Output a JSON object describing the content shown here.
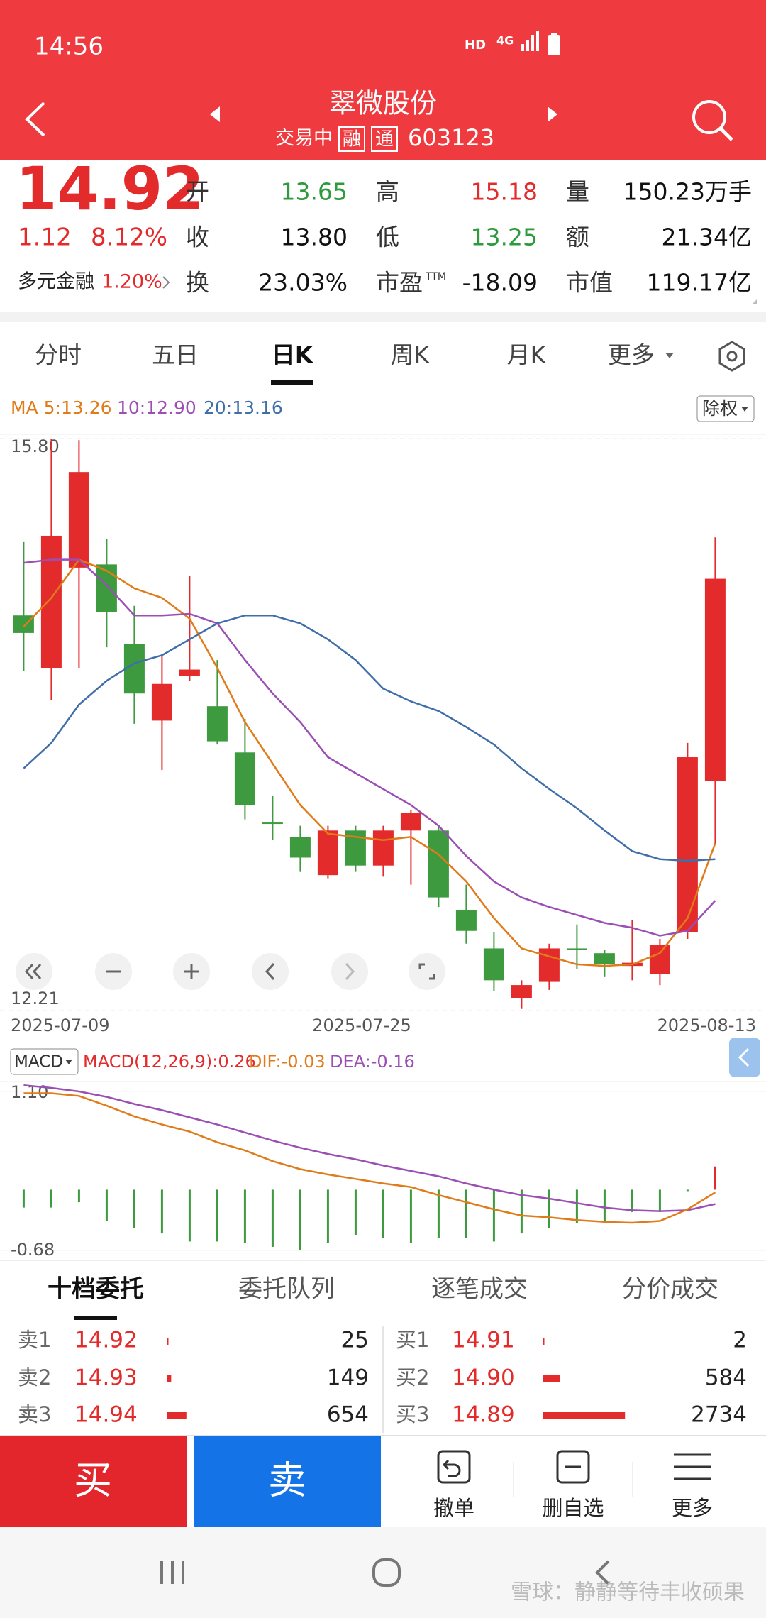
{
  "status_bar": {
    "time": "14:56",
    "hd": "HD",
    "network": "4G"
  },
  "header": {
    "title": "翠微股份",
    "status": "交易中",
    "tags": [
      "融",
      "通"
    ],
    "code": "603123"
  },
  "quote": {
    "price": "14.92",
    "change": "1.12",
    "change_pct": "8.12%",
    "sector": "多元金融",
    "sector_pct": "1.20%",
    "fields": [
      {
        "label": "开",
        "value": "13.65",
        "color": "#2e9a3e"
      },
      {
        "label": "高",
        "value": "15.18",
        "color": "#e32b2b"
      },
      {
        "label": "量",
        "value": "150.23万手",
        "color": "#111111"
      },
      {
        "label": "收",
        "value": "13.80",
        "color": "#111111"
      },
      {
        "label": "低",
        "value": "13.25",
        "color": "#2e9a3e"
      },
      {
        "label": "额",
        "value": "21.34亿",
        "color": "#111111"
      },
      {
        "label": "换",
        "value": "23.03%",
        "color": "#111111"
      },
      {
        "label": "市盈",
        "sup": "TTM",
        "value": "-18.09",
        "color": "#111111"
      },
      {
        "label": "市值",
        "value": "119.17亿",
        "color": "#111111"
      }
    ]
  },
  "period_tabs": {
    "items": [
      "分时",
      "五日",
      "日K",
      "周K",
      "月K",
      "更多"
    ],
    "active": 2
  },
  "kline": {
    "adjust": "除权",
    "ma_series": [
      {
        "label": "MA 5:13.26",
        "color": "#e07b1a",
        "values": [
          14.62,
          14.8,
          15.04,
          14.97,
          14.86,
          14.8,
          14.67,
          14.36,
          14.02,
          13.76,
          13.5,
          13.32,
          13.3,
          13.28,
          13.3,
          13.19,
          13.02,
          12.79,
          12.6,
          12.55,
          12.5,
          12.49,
          12.5,
          12.57,
          12.79,
          13.26
        ]
      },
      {
        "label": "10:12.90",
        "color": "#9b4fb5",
        "values": [
          15.02,
          15.04,
          15.04,
          14.88,
          14.69,
          14.69,
          14.7,
          14.64,
          14.41,
          14.2,
          14.02,
          13.8,
          13.7,
          13.6,
          13.5,
          13.37,
          13.18,
          13.02,
          12.92,
          12.86,
          12.81,
          12.76,
          12.73,
          12.68,
          12.71,
          12.9
        ]
      },
      {
        "label": "20:13.16",
        "color": "#3f6ea8",
        "values": [
          13.73,
          13.89,
          14.13,
          14.28,
          14.39,
          14.44,
          14.54,
          14.64,
          14.69,
          14.69,
          14.64,
          14.54,
          14.41,
          14.23,
          14.15,
          14.09,
          13.99,
          13.88,
          13.73,
          13.6,
          13.48,
          13.34,
          13.21,
          13.16,
          13.15,
          13.16
        ]
      }
    ],
    "up_color": "#e32b2b",
    "down_color": "#3d9a3e",
    "ylim": [
      12.21,
      15.8
    ],
    "yticks": [
      {
        "value": 15.8,
        "label": "15.80"
      },
      12.21
    ],
    "x_labels": [
      "2025-07-09",
      "2025-07-25",
      "2025-08-13"
    ],
    "candles": [
      {
        "open": 14.69,
        "high": 15.15,
        "low": 14.34,
        "close": 14.58
      },
      {
        "open": 14.36,
        "high": 15.8,
        "low": 14.16,
        "close": 15.19
      },
      {
        "open": 14.99,
        "high": 15.79,
        "low": 14.36,
        "close": 15.59
      },
      {
        "open": 15.01,
        "high": 15.17,
        "low": 14.49,
        "close": 14.71
      },
      {
        "open": 14.51,
        "high": 14.75,
        "low": 14.01,
        "close": 14.2
      },
      {
        "open": 14.03,
        "high": 14.45,
        "low": 13.72,
        "close": 14.26
      },
      {
        "open": 14.31,
        "high": 14.94,
        "low": 14.28,
        "close": 14.35
      },
      {
        "open": 14.12,
        "high": 14.41,
        "low": 13.88,
        "close": 13.9
      },
      {
        "open": 13.83,
        "high": 14.04,
        "low": 13.41,
        "close": 13.5
      },
      {
        "open": 13.39,
        "high": 13.56,
        "low": 13.28,
        "close": 13.39
      },
      {
        "open": 13.3,
        "high": 13.37,
        "low": 13.08,
        "close": 13.17
      },
      {
        "open": 13.06,
        "high": 13.37,
        "low": 13.04,
        "close": 13.34
      },
      {
        "open": 13.34,
        "high": 13.37,
        "low": 13.08,
        "close": 13.12
      },
      {
        "open": 13.12,
        "high": 13.37,
        "low": 13.05,
        "close": 13.34
      },
      {
        "open": 13.34,
        "high": 13.47,
        "low": 13.0,
        "close": 13.45
      },
      {
        "open": 13.34,
        "high": 13.37,
        "low": 12.86,
        "close": 12.92
      },
      {
        "open": 12.84,
        "high": 13.0,
        "low": 12.63,
        "close": 12.71
      },
      {
        "open": 12.6,
        "high": 12.7,
        "low": 12.33,
        "close": 12.4
      },
      {
        "open": 12.29,
        "high": 12.4,
        "low": 12.22,
        "close": 12.37
      },
      {
        "open": 12.39,
        "high": 12.63,
        "low": 12.34,
        "close": 12.6
      },
      {
        "open": 12.6,
        "high": 12.75,
        "low": 12.47,
        "close": 12.6
      },
      {
        "open": 12.57,
        "high": 12.59,
        "low": 12.42,
        "close": 12.5
      },
      {
        "open": 12.49,
        "high": 12.78,
        "low": 12.4,
        "close": 12.51
      },
      {
        "open": 12.44,
        "high": 12.66,
        "low": 12.37,
        "close": 12.62
      },
      {
        "open": 12.7,
        "high": 13.89,
        "low": 12.66,
        "close": 13.8
      },
      {
        "open": 13.65,
        "high": 15.18,
        "low": 13.25,
        "close": 14.92
      }
    ]
  },
  "macd": {
    "name": "MACD",
    "params_label": "MACD(12,26,9):0.26",
    "dif_label": "DIF:-0.03",
    "dea_label": "DEA:-0.16",
    "dif_color": "#e07b1a",
    "dea_color": "#9b4fb5",
    "ylim": [
      -0.68,
      1.1
    ],
    "yticks": [
      {
        "value": 1.1,
        "label": "1.10"
      },
      -0.68
    ],
    "hist": [
      -0.2,
      -0.2,
      -0.14,
      -0.35,
      -0.43,
      -0.49,
      -0.58,
      -0.58,
      -0.6,
      -0.64,
      -0.68,
      -0.6,
      -0.51,
      -0.54,
      -0.6,
      -0.54,
      -0.54,
      -0.58,
      -0.49,
      -0.43,
      -0.37,
      -0.35,
      -0.25,
      -0.25,
      0.0,
      0.26
    ],
    "dif": [
      1.08,
      1.08,
      1.05,
      0.94,
      0.82,
      0.73,
      0.65,
      0.53,
      0.44,
      0.32,
      0.23,
      0.17,
      0.12,
      0.07,
      0.03,
      -0.06,
      -0.14,
      -0.22,
      -0.29,
      -0.31,
      -0.34,
      -0.36,
      -0.37,
      -0.35,
      -0.22,
      -0.03
    ],
    "dea": [
      1.17,
      1.14,
      1.1,
      1.04,
      0.96,
      0.89,
      0.81,
      0.73,
      0.64,
      0.55,
      0.47,
      0.4,
      0.34,
      0.27,
      0.21,
      0.15,
      0.07,
      0.0,
      -0.06,
      -0.1,
      -0.15,
      -0.2,
      -0.23,
      -0.24,
      -0.23,
      -0.16
    ]
  },
  "order_tabs": {
    "items": [
      "十档委托",
      "委托队列",
      "逐笔成交",
      "分价成交"
    ],
    "active": 0
  },
  "order_book": {
    "asks": [
      {
        "label": "卖1",
        "price": "14.92",
        "volume": 25
      },
      {
        "label": "卖2",
        "price": "14.93",
        "volume": 149
      },
      {
        "label": "卖3",
        "price": "14.94",
        "volume": 654
      }
    ],
    "bids": [
      {
        "label": "买1",
        "price": "14.91",
        "volume": 2
      },
      {
        "label": "买2",
        "price": "14.90",
        "volume": 584
      },
      {
        "label": "买3",
        "price": "14.89",
        "volume": 2734
      }
    ]
  },
  "actions": {
    "buy": "买",
    "sell": "卖",
    "tools": [
      "撤单",
      "删自选",
      "更多"
    ]
  },
  "watermark": "雪球：静静等待丰收硕果"
}
